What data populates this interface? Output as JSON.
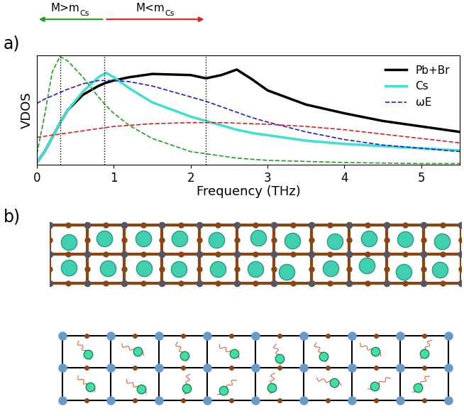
{
  "panel_labels": [
    "a)",
    "b)"
  ],
  "chart_data": {
    "type": "line",
    "x_label": "Frequency (THz)",
    "y_label": "VDOS",
    "xlim": [
      0,
      5.5
    ],
    "xticks": [
      0,
      1,
      2,
      3,
      4,
      5
    ],
    "ylim": [
      0,
      1
    ],
    "yticks": [],
    "tick_labels": "x",
    "legend": "upper right",
    "x": [
      0,
      0.1,
      0.2,
      0.3,
      0.4,
      0.6,
      0.8,
      0.9,
      1.0,
      1.2,
      1.5,
      2.0,
      2.2,
      2.4,
      2.6,
      2.8,
      3.0,
      3.5,
      4.0,
      4.5,
      5.0,
      5.5
    ],
    "series": [
      {
        "name": "Pb+Br",
        "color": "#000000",
        "line_style": "solid",
        "values": [
          0.02,
          0.12,
          0.25,
          0.38,
          0.5,
          0.64,
          0.72,
          0.75,
          0.77,
          0.8,
          0.83,
          0.82,
          0.79,
          0.82,
          0.87,
          0.78,
          0.68,
          0.55,
          0.47,
          0.4,
          0.35,
          0.3
        ]
      },
      {
        "name": "Cs",
        "color": "#40e0d0",
        "line_style": "solid",
        "values": [
          0.02,
          0.12,
          0.25,
          0.38,
          0.5,
          0.67,
          0.8,
          0.84,
          0.8,
          0.7,
          0.57,
          0.44,
          0.4,
          0.36,
          0.32,
          0.29,
          0.27,
          0.22,
          0.19,
          0.17,
          0.15,
          0.13
        ]
      },
      {
        "name": "ωE",
        "color": "#1f1fd0",
        "line_style": "dashed",
        "values": [
          0.56,
          0.6,
          0.63,
          0.66,
          0.69,
          0.74,
          0.77,
          0.77,
          0.77,
          0.76,
          0.72,
          0.62,
          0.58,
          0.53,
          0.48,
          0.43,
          0.39,
          0.3,
          0.23,
          0.18,
          0.15,
          0.12
        ]
      },
      {
        "color": "#e02020",
        "line_style": "dashed",
        "values": [
          0.25,
          0.26,
          0.27,
          0.28,
          0.29,
          0.31,
          0.33,
          0.34,
          0.35,
          0.36,
          0.375,
          0.385,
          0.385,
          0.385,
          0.38,
          0.375,
          0.37,
          0.35,
          0.32,
          0.28,
          0.24,
          0.2
        ]
      },
      {
        "color": "#20a020",
        "line_style": "dashed",
        "values": [
          0.1,
          0.45,
          0.85,
          0.99,
          0.95,
          0.8,
          0.62,
          0.54,
          0.47,
          0.36,
          0.24,
          0.12,
          0.1,
          0.08,
          0.06,
          0.05,
          0.04,
          0.03,
          0.02,
          0.015,
          0.01,
          0.01
        ]
      }
    ],
    "vlines": [
      0.3,
      0.88,
      2.2
    ],
    "annotations": [
      {
        "text": "M>m",
        "subscript": "Cs",
        "color": "#20a020",
        "x_start": 0.88,
        "x_end": 0.0
      },
      {
        "text": "M<m",
        "subscript": "Cs",
        "color": "#e02020",
        "x_start": 0.88,
        "x_end": 2.2
      }
    ]
  }
}
